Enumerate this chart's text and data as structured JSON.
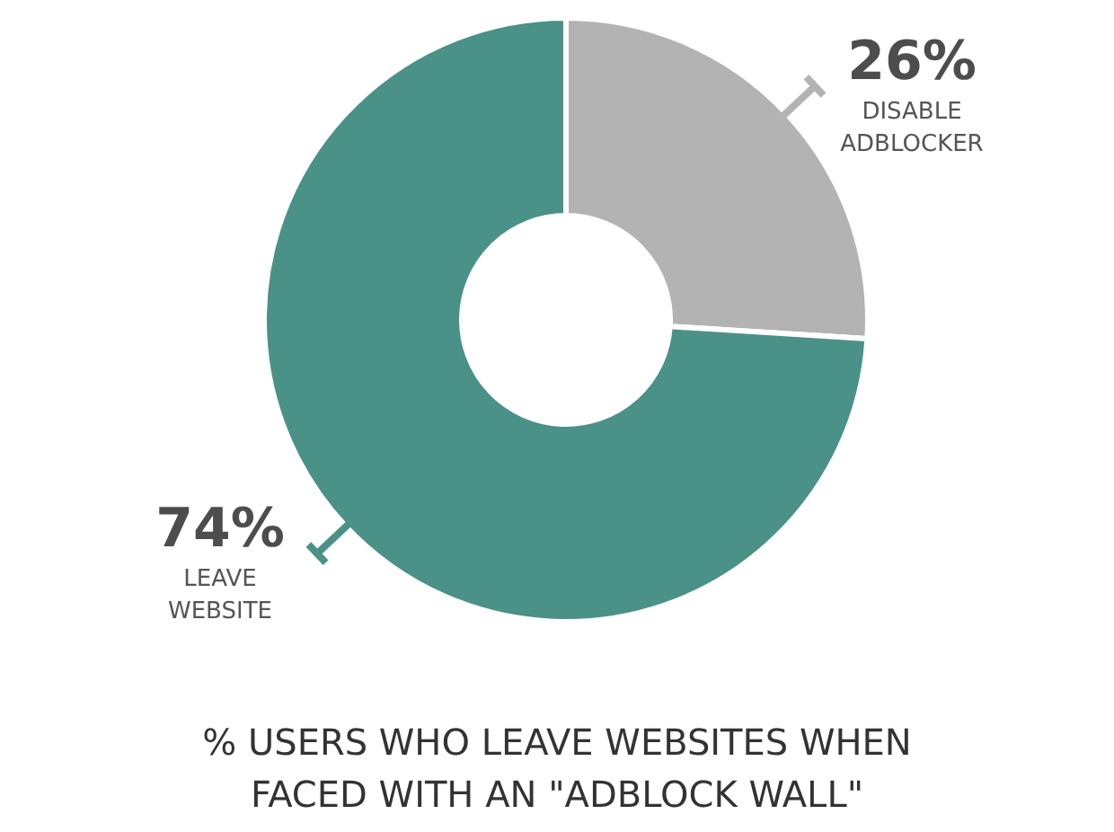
{
  "chart_data": {
    "type": "donut",
    "title": "% USERS WHO LEAVE WEBSITES WHEN FACED WITH AN \"ADBLOCK WALL\"",
    "categories": [
      "DISABLE ADBLOCKER",
      "LEAVE WEBSITE"
    ],
    "values": [
      26,
      74
    ],
    "colors": [
      "#b3b3b3",
      "#4a9188"
    ],
    "value_labels": [
      "26%",
      "74%"
    ]
  }
}
